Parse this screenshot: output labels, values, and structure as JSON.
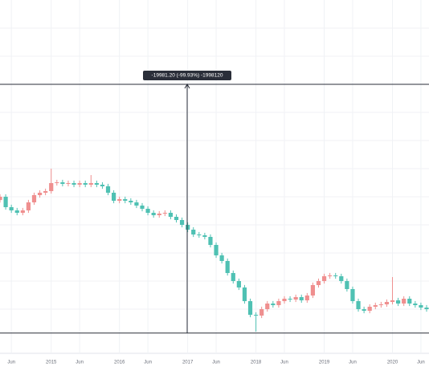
{
  "chart_data": {
    "type": "candlestick",
    "categories": [
      null,
      null,
      "Jun",
      null,
      null,
      null,
      null,
      null,
      null,
      "2015",
      null,
      null,
      null,
      null,
      "Jun",
      null,
      null,
      null,
      null,
      null,
      null,
      "2016",
      null,
      null,
      null,
      null,
      "Jun",
      null,
      null,
      null,
      null,
      null,
      null,
      "2017",
      null,
      null,
      null,
      null,
      "Jun",
      null,
      null,
      null,
      null,
      null,
      null,
      "2018",
      null,
      null,
      null,
      null,
      "Jun",
      null,
      null,
      null,
      null,
      null,
      null,
      "2019",
      null,
      null,
      null,
      null,
      "Jun",
      null,
      null,
      null,
      null,
      null,
      null,
      "2020",
      null,
      null,
      null,
      null,
      "Jun",
      null,
      null
    ],
    "open": [
      10700,
      10965,
      10127,
      9869,
      9675,
      9869,
      10514,
      11094,
      11288,
      11417,
      12062,
      12126,
      11997,
      12062,
      11933,
      12062,
      11933,
      12062,
      11933,
      11804,
      11288,
      10643,
      10772,
      10643,
      10514,
      10256,
      9998,
      9675,
      9482,
      9611,
      9675,
      9353,
      9095,
      8708,
      8321,
      7934,
      7869,
      7740,
      7095,
      6257,
      5805,
      4838,
      4193,
      3677,
      2580,
      1484,
      1419,
      1935,
      2387,
      2258,
      2580,
      2774,
      2709,
      2903,
      2645,
      3032,
      3870,
      4193,
      4580,
      4644,
      4580,
      4193,
      3548,
      2580,
      1935,
      1806,
      2129,
      2258,
      2322,
      2516,
      2645,
      2387,
      2774,
      2387,
      2258,
      2064,
      1935
    ],
    "high": [
      11165,
      11165,
      10327,
      10069,
      10069,
      10714,
      11294,
      11488,
      11617,
      13223,
      12326,
      12326,
      12262,
      12262,
      12262,
      12262,
      12707,
      12262,
      12133,
      12004,
      11488,
      10972,
      10972,
      10843,
      10714,
      10456,
      10198,
      9875,
      9811,
      9875,
      9875,
      9553,
      9295,
      8908,
      8521,
      8134,
      8069,
      7940,
      7295,
      6457,
      6005,
      5038,
      4393,
      3877,
      2780,
      1684,
      2135,
      2587,
      2587,
      2780,
      2974,
      2974,
      3103,
      3103,
      3232,
      4070,
      4393,
      4780,
      4844,
      4844,
      4780,
      4393,
      3748,
      2780,
      2135,
      2329,
      2458,
      2522,
      2716,
      4515,
      2845,
      2974,
      2974,
      2587,
      2458,
      2264,
      2135
    ],
    "low": [
      10500,
      9927,
      9669,
      9475,
      9475,
      9669,
      10314,
      10894,
      11088,
      11217,
      11862,
      11797,
      11797,
      11733,
      11733,
      11733,
      11733,
      11733,
      11604,
      11088,
      10443,
      10443,
      10443,
      10314,
      10056,
      9798,
      9475,
      9282,
      9282,
      9411,
      9153,
      8895,
      8508,
      8121,
      7734,
      7669,
      7540,
      6895,
      6057,
      5605,
      4638,
      3993,
      3477,
      2380,
      1284,
      129,
      1219,
      1735,
      2058,
      2058,
      2380,
      2509,
      2509,
      2445,
      2445,
      2832,
      3670,
      3993,
      4380,
      4380,
      3993,
      3348,
      2380,
      1735,
      1606,
      1606,
      1929,
      2058,
      2122,
      2316,
      2187,
      2187,
      2187,
      2058,
      1864,
      1735,
      1542
    ],
    "close": [
      10965,
      10127,
      9869,
      9675,
      9869,
      10514,
      11094,
      11288,
      11417,
      12062,
      12126,
      11997,
      12062,
      11933,
      12062,
      11933,
      12062,
      11933,
      11804,
      11288,
      10643,
      10772,
      10643,
      10514,
      10256,
      9998,
      9675,
      9482,
      9611,
      9675,
      9353,
      9095,
      8708,
      8321,
      7934,
      7869,
      7740,
      7095,
      6257,
      5805,
      4838,
      4193,
      3677,
      2580,
      1484,
      1419,
      1935,
      2387,
      2258,
      2580,
      2774,
      2709,
      2903,
      2645,
      3032,
      3870,
      4193,
      4580,
      4644,
      4580,
      4193,
      3548,
      2580,
      1935,
      1806,
      2129,
      2258,
      2322,
      2516,
      2645,
      2387,
      2774,
      2387,
      2258,
      2064,
      1935,
      1742
    ],
    "up_color": "#ef8f8f",
    "down_color": "#4fc1b3",
    "ylim": [
      -1613,
      26768
    ],
    "measure": {
      "label": "-19981.20 (-99.93%) -1998120",
      "from": 19995,
      "to": 14
    }
  }
}
